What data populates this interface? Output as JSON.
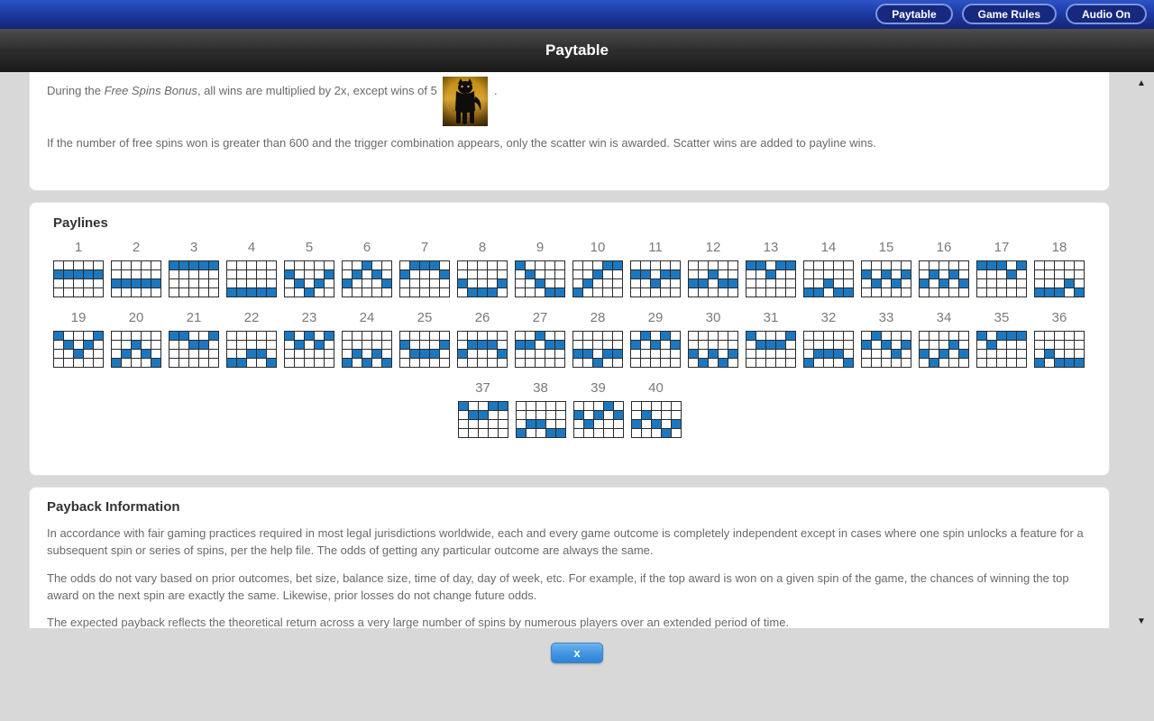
{
  "topbar": {
    "buttons": [
      {
        "label": "Paytable"
      },
      {
        "label": "Game Rules"
      },
      {
        "label": "Audio On"
      }
    ]
  },
  "header": {
    "title": "Paytable"
  },
  "free_spins": {
    "prefix": "During the ",
    "feature_name": "Free Spins Bonus",
    "suffix": ", all wins are multiplied by 2x, except wins of 5",
    "period": ".",
    "symbol_icon": "panther-symbol",
    "scatter_note": "If the number of free spins won is greater than 600 and the trigger combination appears, only the scatter win is awarded. Scatter wins are added to payline wins."
  },
  "paylines": {
    "title": "Paylines",
    "grid_cols": 5,
    "grid_rows": 4,
    "cell_on_color": "#1b78c0",
    "rows_layout": [
      18,
      18,
      4
    ],
    "lines": [
      {
        "num": 1,
        "rows": [
          1,
          1,
          1,
          1,
          1
        ]
      },
      {
        "num": 2,
        "rows": [
          2,
          2,
          2,
          2,
          2
        ]
      },
      {
        "num": 3,
        "rows": [
          0,
          0,
          0,
          0,
          0
        ]
      },
      {
        "num": 4,
        "rows": [
          3,
          3,
          3,
          3,
          3
        ]
      },
      {
        "num": 5,
        "rows": [
          1,
          2,
          3,
          2,
          1
        ]
      },
      {
        "num": 6,
        "rows": [
          2,
          1,
          0,
          1,
          2
        ]
      },
      {
        "num": 7,
        "rows": [
          1,
          0,
          0,
          0,
          1
        ]
      },
      {
        "num": 8,
        "rows": [
          2,
          3,
          3,
          3,
          2
        ]
      },
      {
        "num": 9,
        "rows": [
          0,
          1,
          2,
          3,
          3
        ]
      },
      {
        "num": 10,
        "rows": [
          3,
          2,
          1,
          0,
          0
        ]
      },
      {
        "num": 11,
        "rows": [
          1,
          1,
          2,
          1,
          1
        ]
      },
      {
        "num": 12,
        "rows": [
          2,
          2,
          1,
          2,
          2
        ]
      },
      {
        "num": 13,
        "rows": [
          0,
          0,
          1,
          0,
          0
        ]
      },
      {
        "num": 14,
        "rows": [
          3,
          3,
          2,
          3,
          3
        ]
      },
      {
        "num": 15,
        "rows": [
          1,
          2,
          1,
          2,
          1
        ]
      },
      {
        "num": 16,
        "rows": [
          2,
          1,
          2,
          1,
          2
        ]
      },
      {
        "num": 17,
        "rows": [
          0,
          0,
          0,
          1,
          0
        ]
      },
      {
        "num": 18,
        "rows": [
          3,
          3,
          3,
          2,
          3
        ]
      },
      {
        "num": 19,
        "rows": [
          0,
          1,
          2,
          1,
          0
        ]
      },
      {
        "num": 20,
        "rows": [
          3,
          2,
          1,
          2,
          3
        ]
      },
      {
        "num": 21,
        "rows": [
          0,
          0,
          1,
          1,
          0
        ]
      },
      {
        "num": 22,
        "rows": [
          3,
          3,
          2,
          2,
          3
        ]
      },
      {
        "num": 23,
        "rows": [
          0,
          1,
          0,
          1,
          0
        ]
      },
      {
        "num": 24,
        "rows": [
          3,
          2,
          3,
          2,
          3
        ]
      },
      {
        "num": 25,
        "rows": [
          1,
          2,
          2,
          2,
          1
        ]
      },
      {
        "num": 26,
        "rows": [
          2,
          1,
          1,
          1,
          2
        ]
      },
      {
        "num": 27,
        "rows": [
          1,
          1,
          0,
          1,
          1
        ]
      },
      {
        "num": 28,
        "rows": [
          2,
          2,
          3,
          2,
          2
        ]
      },
      {
        "num": 29,
        "rows": [
          1,
          0,
          1,
          0,
          1
        ]
      },
      {
        "num": 30,
        "rows": [
          2,
          3,
          2,
          3,
          2
        ]
      },
      {
        "num": 31,
        "rows": [
          0,
          1,
          1,
          1,
          0
        ]
      },
      {
        "num": 32,
        "rows": [
          3,
          2,
          2,
          2,
          3
        ]
      },
      {
        "num": 33,
        "rows": [
          1,
          0,
          1,
          2,
          1
        ]
      },
      {
        "num": 34,
        "rows": [
          2,
          3,
          2,
          1,
          2
        ]
      },
      {
        "num": 35,
        "rows": [
          0,
          1,
          0,
          0,
          0
        ]
      },
      {
        "num": 36,
        "rows": [
          3,
          2,
          3,
          3,
          3
        ]
      },
      {
        "num": 37,
        "rows": [
          0,
          1,
          1,
          0,
          0
        ]
      },
      {
        "num": 38,
        "rows": [
          3,
          2,
          2,
          3,
          3
        ]
      },
      {
        "num": 39,
        "rows": [
          1,
          2,
          1,
          0,
          1
        ]
      },
      {
        "num": 40,
        "rows": [
          2,
          1,
          2,
          3,
          2
        ]
      }
    ]
  },
  "payback": {
    "title": "Payback Information",
    "paragraphs": [
      "In accordance with fair gaming practices required in most legal jurisdictions worldwide, each and every game outcome is completely independent except in cases where one spin unlocks a feature for a subsequent spin or series of spins, per the help file. The odds of getting any particular outcome are always the same.",
      "The odds do not vary based on prior outcomes, bet size, balance size, time of day, day of week, etc. For example, if the top award is won on a given spin of the game, the chances of winning the top award on the next spin are exactly the same. Likewise, prior losses do not change future odds.",
      "The expected payback reflects the theoretical return across a very large number of spins by numerous players over an extended period of time."
    ]
  },
  "close_button": {
    "label": "x"
  },
  "scrollbar": {
    "up_icon": "▲",
    "down_icon": "▼"
  }
}
